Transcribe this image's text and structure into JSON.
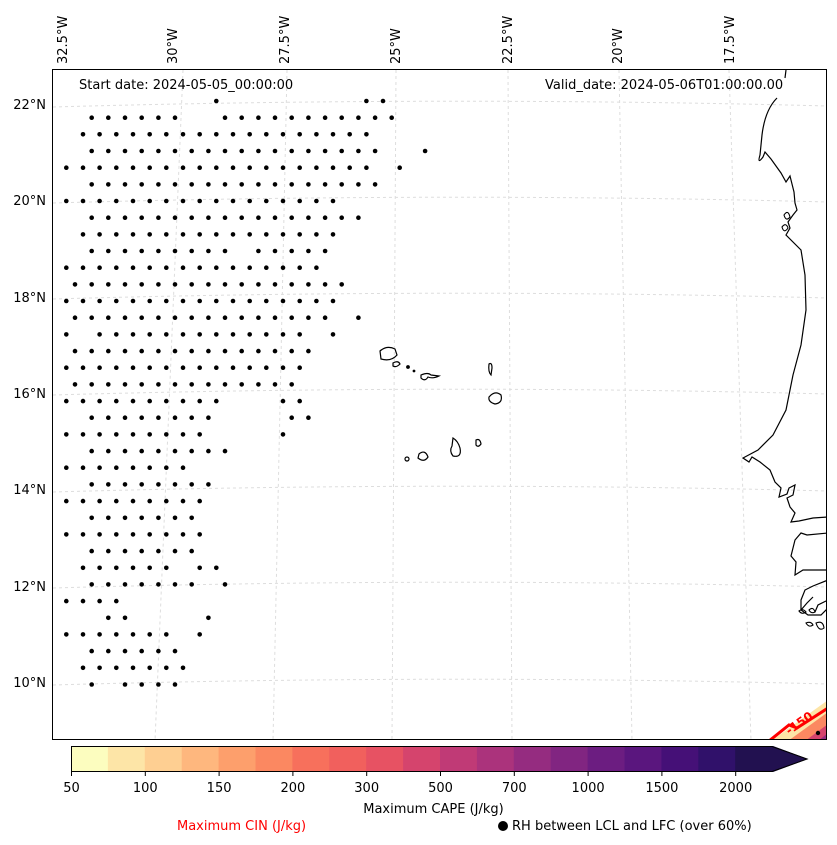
{
  "map": {
    "start_date": "Start date: 2024-05-05_00:00:00",
    "valid_date": "Valid_date: 2024-05-06T01:00:00.00",
    "lon_labels": [
      "32.5°W",
      "30°W",
      "27.5°W",
      "25°W",
      "22.5°W",
      "20°W",
      "17.5°W"
    ],
    "lat_labels": [
      "22°N",
      "20°N",
      "18°N",
      "16°N",
      "14°N",
      "12°N",
      "10°N"
    ],
    "extent": {
      "lon_min": -33.5,
      "lon_max": -16.5,
      "lat_min": 9.0,
      "lat_max": 22.8
    },
    "cin_contour_label": "-150",
    "dot_color": "#000000",
    "coast_color": "#000000",
    "grid_color": "#d9d9d9",
    "cin_color": "#ff0000"
  },
  "rh_dots": {
    "rows": [
      {
        "r": 0,
        "cols": [
          9,
          18,
          19
        ]
      },
      {
        "r": 1,
        "cols": [
          1,
          2,
          3,
          4,
          5,
          6,
          9,
          10,
          11,
          12,
          13,
          14,
          15,
          16,
          17,
          18,
          19
        ]
      },
      {
        "r": 2,
        "cols": [
          1,
          2,
          3,
          4,
          5,
          6,
          7,
          8,
          9,
          10,
          11,
          12,
          13,
          14,
          15,
          16,
          17,
          18
        ]
      },
      {
        "r": 3,
        "cols": [
          1,
          2,
          3,
          4,
          5,
          6,
          7,
          8,
          9,
          10,
          11,
          12,
          13,
          14,
          15,
          16,
          17,
          18,
          21
        ]
      },
      {
        "r": 4,
        "cols": [
          0,
          1,
          2,
          3,
          4,
          5,
          6,
          7,
          8,
          9,
          10,
          11,
          12,
          13,
          14,
          15,
          16,
          17,
          18,
          20
        ]
      },
      {
        "r": 5,
        "cols": [
          1,
          2,
          3,
          4,
          5,
          6,
          7,
          8,
          9,
          10,
          11,
          12,
          13,
          14,
          15,
          16,
          17,
          18
        ]
      },
      {
        "r": 6,
        "cols": [
          0,
          1,
          2,
          3,
          4,
          5,
          6,
          7,
          8,
          9,
          10,
          11,
          12,
          13,
          14,
          15,
          16
        ]
      },
      {
        "r": 7,
        "cols": [
          1,
          2,
          3,
          4,
          5,
          6,
          7,
          8,
          9,
          10,
          11,
          12,
          13,
          14,
          15,
          16,
          17
        ]
      },
      {
        "r": 8,
        "cols": [
          1,
          2,
          3,
          4,
          5,
          6,
          7,
          8,
          9,
          10,
          11,
          12,
          13,
          14,
          15,
          16
        ]
      },
      {
        "r": 9,
        "cols": [
          1,
          2,
          3,
          4,
          5,
          6,
          7,
          8,
          9,
          11,
          12,
          13,
          14,
          15
        ]
      },
      {
        "r": 10,
        "cols": [
          0,
          1,
          2,
          3,
          4,
          5,
          6,
          7,
          8,
          9,
          10,
          11,
          12,
          13,
          14,
          15
        ]
      },
      {
        "r": 11,
        "cols": [
          0,
          1,
          2,
          3,
          4,
          5,
          6,
          7,
          8,
          9,
          10,
          11,
          12,
          13,
          14,
          15,
          16
        ]
      },
      {
        "r": 12,
        "cols": [
          0,
          1,
          2,
          3,
          4,
          5,
          6,
          7,
          8,
          9,
          10,
          11,
          12,
          13,
          14,
          15,
          16
        ]
      },
      {
        "r": 13,
        "cols": [
          0,
          1,
          2,
          3,
          4,
          5,
          6,
          7,
          8,
          9,
          10,
          11,
          12,
          13,
          14,
          15,
          17
        ]
      },
      {
        "r": 14,
        "cols": [
          0,
          2,
          3,
          4,
          5,
          6,
          7,
          8,
          9,
          10,
          11,
          12,
          13,
          14,
          16
        ]
      },
      {
        "r": 15,
        "cols": [
          0,
          1,
          2,
          3,
          4,
          5,
          6,
          7,
          8,
          9,
          10,
          11,
          12,
          13,
          14
        ]
      },
      {
        "r": 16,
        "cols": [
          0,
          1,
          2,
          3,
          4,
          5,
          6,
          7,
          8,
          9,
          10,
          11,
          12,
          13,
          14
        ]
      },
      {
        "r": 17,
        "cols": [
          0,
          1,
          2,
          3,
          4,
          5,
          6,
          7,
          8,
          9,
          10,
          11,
          12,
          13
        ]
      },
      {
        "r": 18,
        "cols": [
          0,
          1,
          2,
          3,
          4,
          5,
          6,
          7,
          8,
          9,
          13,
          14
        ]
      },
      {
        "r": 19,
        "cols": [
          1,
          2,
          3,
          4,
          5,
          6,
          7,
          8,
          13,
          14
        ]
      },
      {
        "r": 20,
        "cols": [
          0,
          1,
          2,
          3,
          4,
          5,
          6,
          7,
          8,
          13
        ]
      },
      {
        "r": 21,
        "cols": [
          1,
          2,
          3,
          4,
          5,
          6,
          7,
          8,
          9
        ]
      },
      {
        "r": 22,
        "cols": [
          0,
          1,
          2,
          3,
          4,
          5,
          6,
          7
        ]
      },
      {
        "r": 23,
        "cols": [
          1,
          2,
          3,
          4,
          5,
          6,
          7,
          8
        ]
      },
      {
        "r": 24,
        "cols": [
          0,
          1,
          2,
          3,
          4,
          5,
          6,
          7,
          8
        ]
      },
      {
        "r": 25,
        "cols": [
          1,
          2,
          3,
          4,
          5,
          6,
          7
        ]
      },
      {
        "r": 26,
        "cols": [
          0,
          1,
          2,
          3,
          4,
          5,
          6,
          7,
          8
        ]
      },
      {
        "r": 27,
        "cols": [
          1,
          2,
          3,
          4,
          5,
          6,
          7
        ]
      },
      {
        "r": 28,
        "cols": [
          1,
          2,
          3,
          4,
          5,
          6,
          8,
          9
        ]
      },
      {
        "r": 29,
        "cols": [
          1,
          2,
          3,
          4,
          5,
          6,
          7,
          9
        ]
      },
      {
        "r": 30,
        "cols": [
          0,
          1,
          2,
          3
        ]
      },
      {
        "r": 31,
        "cols": [
          2,
          3,
          8
        ]
      },
      {
        "r": 32,
        "cols": [
          0,
          1,
          2,
          3,
          4,
          5,
          6,
          8
        ]
      },
      {
        "r": 33,
        "cols": [
          1,
          2,
          3,
          4,
          5,
          6
        ]
      },
      {
        "r": 34,
        "cols": [
          1,
          2,
          3,
          4,
          5,
          6,
          7
        ]
      },
      {
        "r": 35,
        "cols": [
          1,
          3,
          4,
          5,
          6
        ]
      }
    ]
  },
  "colorbar": {
    "title": "Maximum CAPE (J/kg)",
    "levels": [
      50,
      75,
      100,
      125,
      150,
      175,
      200,
      250,
      300,
      400,
      500,
      600,
      700,
      800,
      1000,
      1250,
      1500,
      1750,
      2000
    ],
    "tick_labels": [
      "50",
      "100",
      "150",
      "200",
      "300",
      "500",
      "700",
      "1000",
      "1500",
      "2000"
    ],
    "tick_segment_index": [
      0,
      2,
      4,
      6,
      8,
      10,
      12,
      14,
      16,
      18
    ],
    "colors": [
      "#fcfdbf",
      "#fde5a7",
      "#fecf92",
      "#feb77e",
      "#fd9f6c",
      "#fb8861",
      "#f7705c",
      "#f1605d",
      "#e75263",
      "#d5446d",
      "#c03a76",
      "#ab337c",
      "#952c80",
      "#812581",
      "#6c1d81",
      "#5a167e",
      "#451077",
      "#30116a",
      "#221150"
    ],
    "extend": "max"
  },
  "legend": {
    "cin_label": "Maximum CIN (J/kg)",
    "rh_label": "RH between LCL and LFC (over 60%)"
  }
}
